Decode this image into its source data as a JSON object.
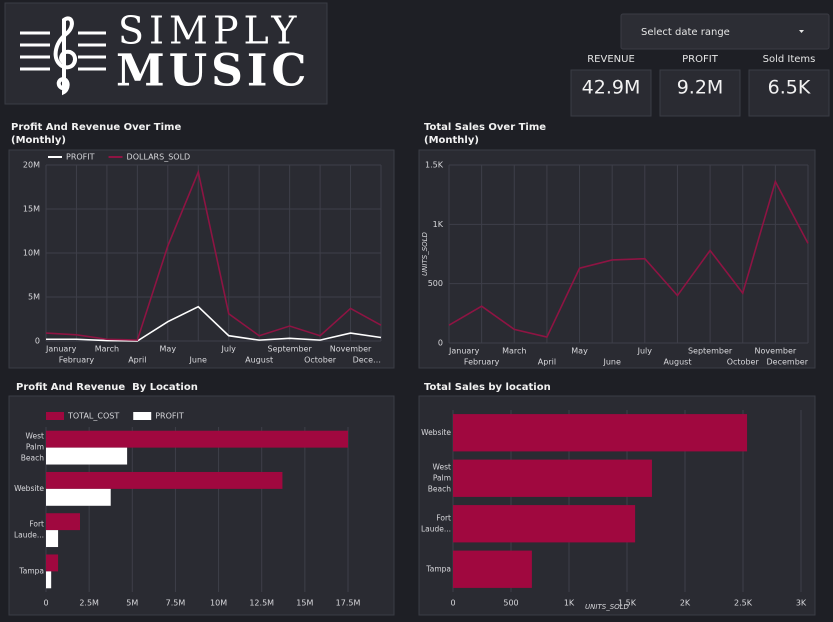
{
  "header": {
    "logo_top": "SIMPLY",
    "logo_bottom": "MUSIC"
  },
  "date_range": "Select date range",
  "kpis": [
    {
      "label": "REVENUE",
      "value": "42.9M"
    },
    {
      "label": "PROFIT",
      "value": "9.2M"
    },
    {
      "label": "Sold Items",
      "value": "6.5K"
    }
  ],
  "chart_data": [
    {
      "type": "line",
      "title": "Profit And Revenue Over Time",
      "subtitle": "(Monthly)",
      "categories": [
        "January",
        "February",
        "March",
        "April",
        "May",
        "June",
        "July",
        "August",
        "September",
        "October",
        "November",
        "Dece…"
      ],
      "series": [
        {
          "name": "PROFIT",
          "color": "#ffffff",
          "values": [
            200000,
            200000,
            50000,
            0,
            2200000,
            3900000,
            600000,
            100000,
            300000,
            100000,
            900000,
            400000
          ]
        },
        {
          "name": "DOLLARS_SOLD",
          "color": "#8e1443",
          "values": [
            900000,
            700000,
            200000,
            100000,
            10800000,
            19200000,
            3100000,
            600000,
            1700000,
            600000,
            3700000,
            1800000
          ]
        }
      ],
      "ylim": [
        0,
        20000000
      ],
      "yticks": [
        0,
        {
          "value": 5000000,
          "label": "5M"
        },
        {
          "value": 10000000,
          "label": "10M"
        },
        {
          "value": 15000000,
          "label": "15M"
        },
        {
          "value": 20000000,
          "label": "20M"
        }
      ],
      "grid": true
    },
    {
      "type": "line",
      "title": "Total Sales Over Time",
      "subtitle": "(Monthly)",
      "y_label": "UNITS_SOLD",
      "categories": [
        "January",
        "February",
        "March",
        "April",
        "May",
        "June",
        "July",
        "August",
        "September",
        "October",
        "November",
        "December"
      ],
      "values": [
        150,
        310,
        115,
        50,
        630,
        700,
        710,
        400,
        780,
        420,
        1360,
        840
      ],
      "color": "#8e1443",
      "ylim": [
        0,
        1500
      ],
      "yticks": [
        0,
        500,
        {
          "value": 1000,
          "label": "1K"
        },
        {
          "value": 1500,
          "label": "1.5K"
        }
      ],
      "grid": true
    },
    {
      "type": "hbar",
      "title": "Profit And Revenue  By Location",
      "categories": [
        "West Palm Beach",
        "Website",
        "Fort Laude...",
        "Tampa"
      ],
      "series": [
        {
          "name": "TOTAL_COST",
          "color": "#a0083f",
          "values": [
            17500000,
            13700000,
            1970000,
            700000
          ]
        },
        {
          "name": "PROFIT",
          "color": "#ffffff",
          "values": [
            4700000,
            3750000,
            700000,
            300000
          ]
        }
      ],
      "xlim": [
        0,
        17500000
      ],
      "xticks": [
        0,
        {
          "value": 2500000,
          "label": "2.5M"
        },
        {
          "value": 5000000,
          "label": "5M"
        },
        {
          "value": 7500000,
          "label": "7.5M"
        },
        {
          "value": 10000000,
          "label": "10M"
        },
        {
          "value": 12500000,
          "label": "12.5M"
        },
        {
          "value": 15000000,
          "label": "15M"
        },
        {
          "value": 17500000,
          "label": "17.5M"
        }
      ],
      "grid": true
    },
    {
      "type": "hbar",
      "title": "Total Sales by location",
      "x_label": "UNITS_SOLD",
      "categories": [
        "Website",
        "West Palm Beach",
        "Fort Laude...",
        "Tampa"
      ],
      "values": [
        2535,
        1715,
        1570,
        680
      ],
      "color": "#a0083f",
      "xlim": [
        0,
        3000
      ],
      "xticks": [
        0,
        500,
        {
          "value": 1000,
          "label": "1K"
        },
        {
          "value": 1500,
          "label": "1.5K"
        },
        {
          "value": 2000,
          "label": "2K"
        },
        {
          "value": 2500,
          "label": "2.5K"
        },
        {
          "value": 3000,
          "label": "3K"
        }
      ],
      "grid": true
    }
  ]
}
